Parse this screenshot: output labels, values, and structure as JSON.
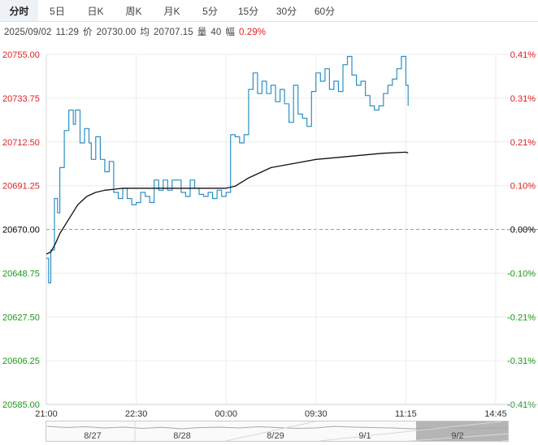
{
  "tabs": [
    {
      "label": "分时",
      "active": true
    },
    {
      "label": "5日",
      "active": false
    },
    {
      "label": "日K",
      "active": false
    },
    {
      "label": "周K",
      "active": false
    },
    {
      "label": "月K",
      "active": false
    },
    {
      "label": "5分",
      "active": false
    },
    {
      "label": "15分",
      "active": false
    },
    {
      "label": "30分",
      "active": false
    },
    {
      "label": "60分",
      "active": false
    }
  ],
  "info": {
    "datetime": "2025/09/02",
    "time": "11:29",
    "price_label": "价",
    "price": "20730.00",
    "avg_label": "均",
    "avg": "20707.15",
    "vol_label": "量",
    "vol": "40",
    "change_label": "幅",
    "change": "0.29%"
  },
  "colors": {
    "price_line": "#2b8fc4",
    "avg_line": "#111111",
    "up": "#e02020",
    "down": "#1a9a1a",
    "base": "#000000",
    "grid": "#ececec"
  },
  "chart_data": {
    "type": "line",
    "base_price": 20670.0,
    "ylim": [
      20585.0,
      20755.0
    ],
    "y_ticks": [
      "20755.00",
      "20733.75",
      "20712.50",
      "20691.25",
      "20670.00",
      "20648.75",
      "20627.50",
      "20606.25",
      "20585.00"
    ],
    "pct_ticks": [
      "0.41%",
      "0.31%",
      "0.21%",
      "0.10%",
      "0.00%",
      "-0.10%",
      "-0.21%",
      "-0.31%",
      "-0.41%"
    ],
    "x_ticks": [
      "21:00",
      "22:30",
      "00:00",
      "09:30",
      "11:15",
      "14:45"
    ],
    "x_tick_pos": [
      0,
      0.2,
      0.4,
      0.6,
      0.8,
      1.0
    ],
    "x_range": [
      0,
      1
    ],
    "series": [
      {
        "key": "price",
        "x": [
          0,
          0.005,
          0.01,
          0.018,
          0.025,
          0.03,
          0.04,
          0.05,
          0.06,
          0.065,
          0.075,
          0.085,
          0.095,
          0.1,
          0.11,
          0.12,
          0.13,
          0.14,
          0.15,
          0.16,
          0.17,
          0.18,
          0.19,
          0.2,
          0.21,
          0.22,
          0.23,
          0.24,
          0.25,
          0.26,
          0.27,
          0.28,
          0.29,
          0.3,
          0.31,
          0.32,
          0.33,
          0.34,
          0.35,
          0.36,
          0.37,
          0.38,
          0.39,
          0.4,
          0.41,
          0.42,
          0.43,
          0.44,
          0.45,
          0.46,
          0.47,
          0.48,
          0.49,
          0.5,
          0.51,
          0.52,
          0.53,
          0.54,
          0.55,
          0.56,
          0.57,
          0.58,
          0.59,
          0.6,
          0.61,
          0.62,
          0.63,
          0.64,
          0.65,
          0.66,
          0.67,
          0.68,
          0.69,
          0.7,
          0.71,
          0.72,
          0.73,
          0.74,
          0.75,
          0.76,
          0.77,
          0.78,
          0.79,
          0.8,
          0.805
        ],
        "values": [
          20656,
          20644,
          20660,
          20685,
          20678,
          20700,
          20718,
          20728,
          20721,
          20728,
          20712,
          20719,
          20712,
          20704,
          20715,
          20704,
          20698,
          20703,
          20688,
          20685,
          20690,
          20685,
          20682,
          20683,
          20688,
          20686,
          20683,
          20694,
          20689,
          20694,
          20689,
          20694,
          20694,
          20688,
          20686,
          20694,
          20690,
          20687,
          20686,
          20688,
          20685,
          20689,
          20686,
          20688,
          20716,
          20715,
          20712,
          20716,
          20738,
          20746,
          20736,
          20742,
          20736,
          20740,
          20732,
          20738,
          20731,
          20722,
          20740,
          20726,
          20724,
          20720,
          20737,
          20746,
          20742,
          20748,
          20738,
          20742,
          20737,
          20750,
          20754,
          20745,
          20740,
          20742,
          20735,
          20730,
          20728,
          20730,
          20736,
          20740,
          20743,
          20748,
          20754,
          20740,
          20730
        ]
      },
      {
        "key": "average",
        "x": [
          0,
          0.01,
          0.02,
          0.03,
          0.05,
          0.07,
          0.09,
          0.11,
          0.13,
          0.15,
          0.17,
          0.2,
          0.23,
          0.26,
          0.3,
          0.35,
          0.4,
          0.42,
          0.45,
          0.48,
          0.5,
          0.55,
          0.6,
          0.65,
          0.7,
          0.75,
          0.8,
          0.805
        ],
        "values": [
          20658,
          20659,
          20663,
          20668,
          20675,
          20682,
          20686,
          20688,
          20689,
          20689.5,
          20690,
          20690,
          20690,
          20690,
          20690,
          20690,
          20690,
          20691,
          20695,
          20698,
          20700,
          20702,
          20704,
          20705,
          20706,
          20707,
          20707.5,
          20707.15
        ]
      }
    ]
  },
  "navigator": {
    "dates": [
      "8/27",
      "8/28",
      "8/29",
      "9/1",
      "9/2"
    ]
  }
}
